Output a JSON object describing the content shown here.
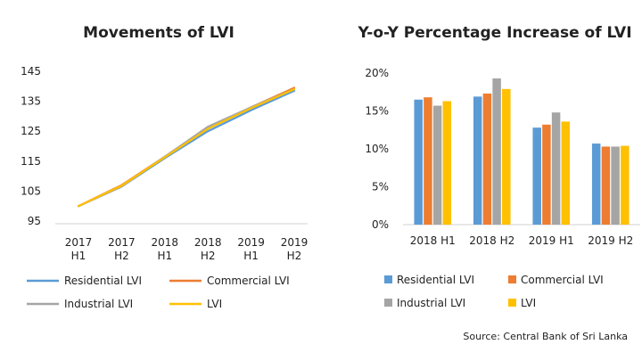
{
  "chart_data": [
    {
      "type": "line",
      "title": "Movements of LVI",
      "x": [
        "2017 H1",
        "2017 H2",
        "2018 H1",
        "2018 H2",
        "2019 H1",
        "2019 H2"
      ],
      "x_lines": [
        [
          "2017",
          "H1"
        ],
        [
          "2017",
          "H2"
        ],
        [
          "2018",
          "H1"
        ],
        [
          "2018",
          "H2"
        ],
        [
          "2019",
          "H1"
        ],
        [
          "2019",
          "H2"
        ]
      ],
      "yticks": [
        95,
        105,
        115,
        125,
        135,
        145
      ],
      "ylim": [
        95,
        145
      ],
      "grid": false,
      "legend_position": "bottom",
      "series": [
        {
          "name": "Residential LVI",
          "color": "#5B9BD5",
          "values": [
            100,
            106.5,
            116,
            125,
            132,
            138.5
          ]
        },
        {
          "name": "Commercial LVI",
          "color": "#ED7D31",
          "values": [
            100,
            107,
            116.5,
            126,
            133,
            139.5
          ]
        },
        {
          "name": "Industrial LVI",
          "color": "#A5A5A5",
          "values": [
            100,
            106.5,
            116.5,
            126.5,
            133,
            139
          ]
        },
        {
          "name": "LVI",
          "color": "#FFC000",
          "values": [
            100,
            106.8,
            116.3,
            125.8,
            132.7,
            139
          ]
        }
      ]
    },
    {
      "type": "bar",
      "title": "Y-o-Y Percentage Increase of LVI",
      "categories": [
        "2018 H1",
        "2018 H2",
        "2019 H1",
        "2019 H2"
      ],
      "yticks": [
        0,
        5,
        10,
        15,
        20
      ],
      "ytick_labels": [
        "0%",
        "5%",
        "10%",
        "15%",
        "20%"
      ],
      "ylim": [
        0,
        20
      ],
      "grid": false,
      "legend_position": "bottom",
      "series": [
        {
          "name": "Residential LVI",
          "color": "#5B9BD5",
          "values": [
            16.5,
            16.9,
            12.8,
            10.7
          ]
        },
        {
          "name": "Commercial LVI",
          "color": "#ED7D31",
          "values": [
            16.8,
            17.3,
            13.2,
            10.3
          ]
        },
        {
          "name": "Industrial LVI",
          "color": "#A5A5A5",
          "values": [
            15.7,
            19.3,
            14.8,
            10.3
          ]
        },
        {
          "name": "LVI",
          "color": "#FFC000",
          "values": [
            16.3,
            17.9,
            13.6,
            10.4
          ]
        }
      ]
    }
  ],
  "source": "Source: Central Bank of Sri Lanka"
}
